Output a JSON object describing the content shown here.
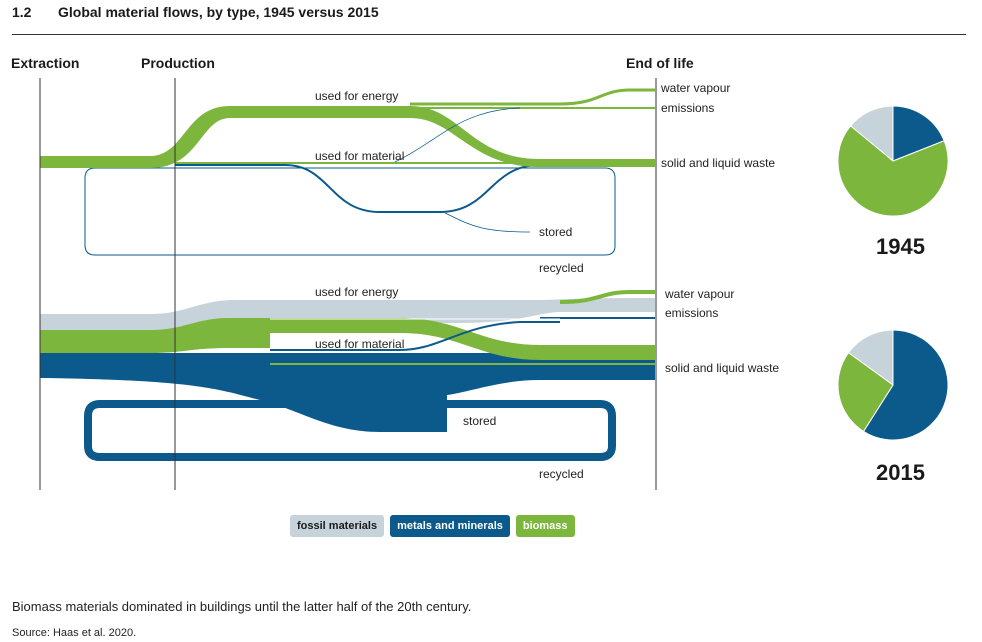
{
  "header": {
    "number": "1.2",
    "title": "Global material flows, by type, 1945 versus 2015"
  },
  "columns": {
    "extraction": "Extraction",
    "production": "Production",
    "end_of_life": "End of life"
  },
  "colors": {
    "fossil": "#c7d3da",
    "metals": "#0b5a8b",
    "biomass": "#7cb63c"
  },
  "chart_data": {
    "type": "sankey",
    "stages": [
      "Extraction",
      "Production",
      "End of life"
    ],
    "panels": [
      {
        "year": "1945",
        "flow_labels": {
          "used_energy": "used for energy",
          "used_material": "used for material",
          "water_vapour": "water vapour",
          "emissions": "emissions",
          "solid_waste": "solid and liquid waste",
          "stored": "stored",
          "recycled": "recycled"
        },
        "pie": [
          {
            "name": "fossil materials",
            "share": 0.14
          },
          {
            "name": "metals and minerals",
            "share": 0.19
          },
          {
            "name": "biomass",
            "share": 0.67
          }
        ]
      },
      {
        "year": "2015",
        "flow_labels": {
          "used_energy": "used for energy",
          "used_material": "used for material",
          "water_vapour": "water vapour",
          "emissions": "emissions",
          "solid_waste": "solid and liquid waste",
          "stored": "stored",
          "recycled": "recycled"
        },
        "pie": [
          {
            "name": "fossil materials",
            "share": 0.15
          },
          {
            "name": "metals and minerals",
            "share": 0.59
          },
          {
            "name": "biomass",
            "share": 0.26
          }
        ]
      }
    ],
    "legend": [
      "fossil materials",
      "metals and minerals",
      "biomass"
    ]
  },
  "caption": "Biomass materials dominated in buildings until the latter half of the 20th century.",
  "source": "Source: Haas et al. 2020."
}
